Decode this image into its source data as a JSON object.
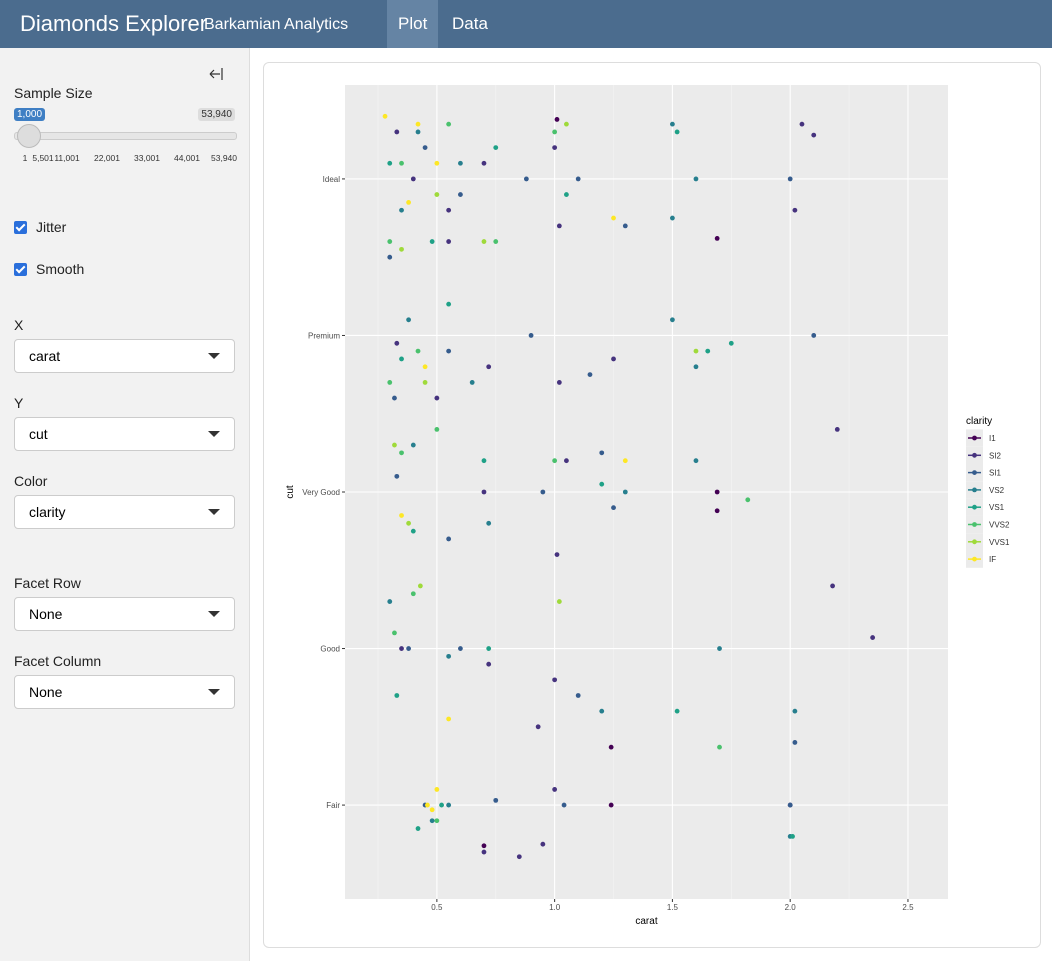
{
  "header": {
    "title": "Diamonds Explorer",
    "subtitle": "Barkamian Analytics",
    "tabs": [
      "Plot",
      "Data"
    ]
  },
  "sidebar": {
    "sample_size": {
      "label": "Sample Size",
      "value": "1,000",
      "max": "53,940",
      "ticks": [
        "1",
        "5,501",
        "11,001",
        "22,001",
        "33,001",
        "44,001",
        "53,940"
      ]
    },
    "checkboxes": [
      "Jitter",
      "Smooth"
    ],
    "selects": [
      {
        "label": "X",
        "value": "carat"
      },
      {
        "label": "Y",
        "value": "cut"
      },
      {
        "label": "Color",
        "value": "clarity"
      },
      {
        "label": "Facet Row",
        "value": "None"
      },
      {
        "label": "Facet Column",
        "value": "None"
      }
    ]
  },
  "chart_data": {
    "type": "scatter",
    "x_label": "carat",
    "y_label": "cut",
    "legend_title": "clarity",
    "legend": "right",
    "grid": true,
    "xlim": [
      0.11,
      2.67
    ],
    "xticks": [
      0.5,
      {
        "value": 1,
        "label": "1.0"
      },
      1.5,
      {
        "value": 2,
        "label": "2.0"
      },
      2.5
    ],
    "ylim": [
      0.4,
      5.6
    ],
    "yticks": [
      {
        "value": 1,
        "label": "Fair"
      },
      {
        "value": 2,
        "label": "Good"
      },
      {
        "value": 3,
        "label": "Very Good"
      },
      {
        "value": 4,
        "label": "Premium"
      },
      {
        "value": 5,
        "label": "Ideal"
      }
    ],
    "series": [
      {
        "name": "I1",
        "color": "#440154",
        "x": [
          1.69,
          1.69,
          1.69,
          1.24,
          1.24,
          0.7,
          1.01
        ],
        "y": [
          4.62,
          3.0,
          2.88,
          1.37,
          1.0,
          0.74,
          5.38
        ]
      },
      {
        "name": "SI2",
        "color": "#46337E",
        "x": [
          0.33,
          0.4,
          0.55,
          0.7,
          1.0,
          1.02,
          2.05,
          2.1,
          2.02,
          0.33,
          0.72,
          1.02,
          1.25,
          2.2,
          0.7,
          1.01,
          1.05,
          2.18,
          0.35,
          0.72,
          0.93,
          1.0,
          2.35,
          0.7,
          0.85,
          0.95,
          1.0,
          2.0,
          0.55,
          0.5
        ],
        "y": [
          5.3,
          5.0,
          4.8,
          5.1,
          5.2,
          4.7,
          5.35,
          5.28,
          4.8,
          3.95,
          3.8,
          3.7,
          3.85,
          3.4,
          3.0,
          2.6,
          3.2,
          2.4,
          2.0,
          1.9,
          1.5,
          1.8,
          2.07,
          0.7,
          0.67,
          0.75,
          1.1,
          1.0,
          4.6,
          3.6
        ]
      },
      {
        "name": "SI1",
        "color": "#365C8D",
        "x": [
          0.3,
          0.45,
          0.6,
          0.88,
          1.1,
          1.3,
          2.0,
          0.32,
          0.55,
          0.9,
          1.15,
          2.1,
          0.33,
          0.55,
          0.95,
          1.25,
          0.38,
          0.6,
          1.1,
          2.02,
          0.45,
          0.75,
          1.04,
          2.0,
          1.2
        ],
        "y": [
          4.5,
          5.2,
          4.9,
          5.0,
          5.0,
          4.7,
          5.0,
          3.6,
          3.9,
          4.0,
          3.75,
          4.0,
          3.1,
          2.7,
          3.0,
          2.9,
          2.0,
          2.0,
          1.7,
          1.4,
          1.0,
          1.03,
          1.0,
          1.0,
          3.25
        ]
      },
      {
        "name": "VS2",
        "color": "#277F8E",
        "x": [
          0.35,
          0.42,
          0.6,
          1.5,
          1.5,
          1.6,
          0.38,
          0.65,
          1.5,
          1.6,
          0.4,
          0.72,
          1.3,
          1.6,
          0.3,
          0.55,
          1.2,
          1.7,
          2.02,
          0.48,
          0.55,
          2.0
        ],
        "y": [
          4.8,
          5.3,
          5.1,
          5.35,
          4.75,
          5.0,
          4.1,
          3.7,
          4.1,
          3.8,
          3.3,
          2.8,
          3.0,
          3.2,
          2.3,
          1.95,
          1.6,
          2.0,
          1.6,
          0.9,
          1.0,
          0.8
        ]
      },
      {
        "name": "VS1",
        "color": "#1FA187",
        "x": [
          0.3,
          0.48,
          0.75,
          1.05,
          1.52,
          0.35,
          0.55,
          1.65,
          1.75,
          0.4,
          0.7,
          1.2,
          0.33,
          0.52,
          0.72,
          1.52,
          0.42,
          2.01
        ],
        "y": [
          5.1,
          4.6,
          5.2,
          4.9,
          5.3,
          3.85,
          4.2,
          3.9,
          3.95,
          2.75,
          3.2,
          3.05,
          1.7,
          1.0,
          2.0,
          1.6,
          0.85,
          0.8
        ]
      },
      {
        "name": "VVS2",
        "color": "#4AC16D",
        "x": [
          0.3,
          0.35,
          0.55,
          1.0,
          0.75,
          0.3,
          0.42,
          1.0,
          0.35,
          0.5,
          1.82,
          0.32,
          0.5,
          0.4,
          1.7
        ],
        "y": [
          4.6,
          5.1,
          5.35,
          5.3,
          4.6,
          3.7,
          3.9,
          3.2,
          3.25,
          3.4,
          2.95,
          2.1,
          0.9,
          2.35,
          1.37
        ]
      },
      {
        "name": "VVS1",
        "color": "#9FDA3A",
        "x": [
          0.35,
          0.5,
          0.7,
          1.05,
          0.32,
          0.45,
          0.38,
          1.02,
          0.43,
          1.6
        ],
        "y": [
          4.55,
          4.9,
          4.6,
          5.35,
          3.3,
          3.7,
          2.8,
          2.3,
          2.4,
          3.9
        ]
      },
      {
        "name": "IF",
        "color": "#FDE725",
        "x": [
          0.28,
          0.42,
          0.5,
          0.38,
          1.25,
          0.45,
          1.3,
          0.35,
          0.5,
          0.46,
          0.55,
          0.48
        ],
        "y": [
          5.4,
          5.35,
          5.1,
          4.85,
          4.75,
          3.8,
          3.2,
          2.85,
          1.1,
          1.0,
          1.55,
          0.97
        ]
      }
    ]
  }
}
